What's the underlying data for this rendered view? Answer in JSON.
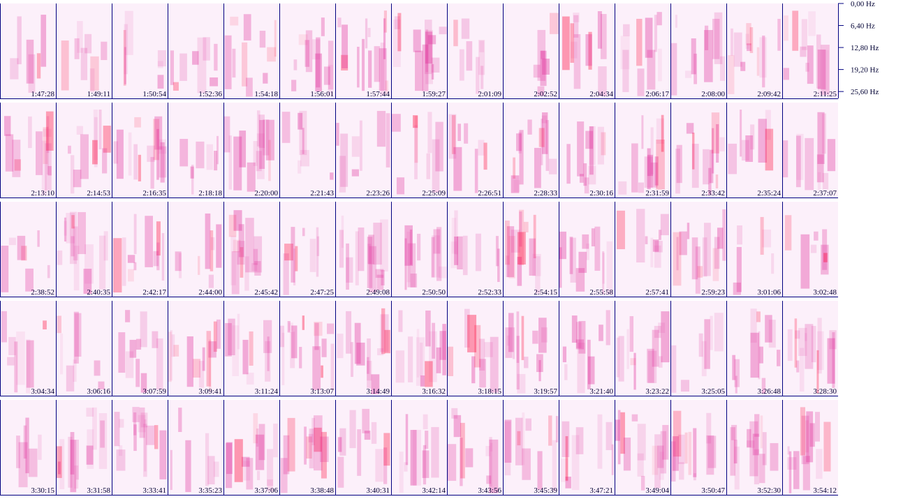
{
  "chart_data": {
    "type": "spectrogram",
    "ylim": [
      0,
      27.6
    ],
    "yticks": [
      {
        "value": 0,
        "label": "0,00 Hz"
      },
      {
        "value": 6.4,
        "label": "6,40 Hz"
      },
      {
        "value": 12.8,
        "label": "12,80 Hz"
      },
      {
        "value": 19.2,
        "label": "19,20 Hz"
      },
      {
        "value": 25.6,
        "label": "25,60 Hz"
      }
    ],
    "categories": [
      "1:47:28",
      "1:49:11",
      "1:50:54",
      "1:52:36",
      "1:54:18",
      "1:56:01",
      "1:57:44",
      "1:59:27",
      "2:01:09",
      "2:02:52",
      "2:04:34",
      "2:06:17",
      "2:08:00",
      "2:09:42",
      "2:11:25",
      "2:13:10",
      "2:14:53",
      "2:16:35",
      "2:18:18",
      "2:20:00",
      "2:21:43",
      "2:23:26",
      "2:25:09",
      "2:26:51",
      "2:28:33",
      "2:30:16",
      "2:31:59",
      "2:33:42",
      "2:35:24",
      "2:37:07",
      "2:38:52",
      "2:40:35",
      "2:42:17",
      "2:44:00",
      "2:45:42",
      "2:47:25",
      "2:49:08",
      "2:50:50",
      "2:52:33",
      "2:54:15",
      "2:55:58",
      "2:57:41",
      "2:59:23",
      "3:01:06",
      "3:02:48",
      "3:04:34",
      "3:06:16",
      "3:07:59",
      "3:09:41",
      "3:11:24",
      "3:13:07",
      "3:14:49",
      "3:16:32",
      "3:18:15",
      "3:19:57",
      "3:21:40",
      "3:23:22",
      "3:25:05",
      "3:26:48",
      "3:28:30",
      "3:30:15",
      "3:31:58",
      "3:33:41",
      "3:35:23",
      "3:37:06",
      "3:38:48",
      "3:40:31",
      "3:42:14",
      "3:43:56",
      "3:45:39",
      "3:47:21",
      "3:49:04",
      "3:50:47",
      "3:52:30",
      "3:54:12"
    ]
  }
}
